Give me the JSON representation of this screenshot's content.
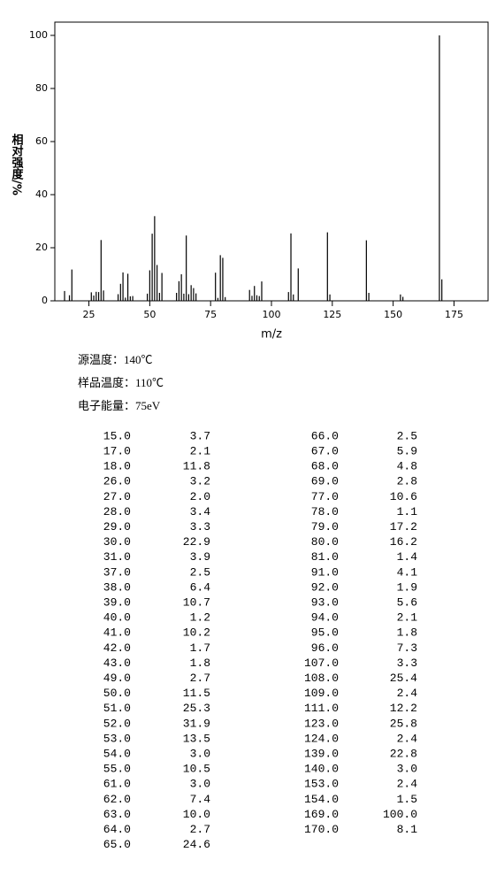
{
  "chart_data": {
    "type": "bar",
    "y_label": "相对强度/%",
    "x_label": "m/z",
    "x": [
      15,
      17,
      18,
      26,
      27,
      28,
      29,
      30,
      31,
      37,
      38,
      39,
      40,
      41,
      42,
      43,
      49,
      50,
      51,
      52,
      53,
      54,
      55,
      61,
      62,
      63,
      64,
      65,
      66,
      67,
      68,
      69,
      77,
      78,
      79,
      80,
      81,
      91,
      92,
      93,
      94,
      95,
      96,
      107,
      108,
      109,
      111,
      123,
      124,
      139,
      140,
      153,
      154,
      169,
      170
    ],
    "x_labels": [
      "15.0",
      "17.0",
      "18.0",
      "26.0",
      "27.0",
      "28.0",
      "29.0",
      "30.0",
      "31.0",
      "37.0",
      "38.0",
      "39.0",
      "40.0",
      "41.0",
      "42.0",
      "43.0",
      "49.0",
      "50.0",
      "51.0",
      "52.0",
      "53.0",
      "54.0",
      "55.0",
      "61.0",
      "62.0",
      "63.0",
      "64.0",
      "65.0",
      "66.0",
      "67.0",
      "68.0",
      "69.0",
      "77.0",
      "78.0",
      "79.0",
      "80.0",
      "81.0",
      "91.0",
      "92.0",
      "93.0",
      "94.0",
      "95.0",
      "96.0",
      "107.0",
      "108.0",
      "109.0",
      "111.0",
      "123.0",
      "124.0",
      "139.0",
      "140.0",
      "153.0",
      "154.0",
      "169.0",
      "170.0"
    ],
    "values": [
      3.7,
      2.1,
      11.8,
      3.2,
      2.0,
      3.4,
      3.3,
      22.9,
      3.9,
      2.5,
      6.4,
      10.7,
      1.2,
      10.2,
      1.7,
      1.8,
      2.7,
      11.5,
      25.3,
      31.9,
      13.5,
      3.0,
      10.5,
      3.0,
      7.4,
      10.0,
      2.7,
      24.6,
      2.5,
      5.9,
      4.8,
      2.8,
      10.6,
      1.1,
      17.2,
      16.2,
      1.4,
      4.1,
      1.9,
      5.6,
      2.1,
      1.8,
      7.3,
      3.3,
      25.4,
      2.4,
      12.2,
      25.8,
      2.4,
      22.8,
      3.0,
      2.4,
      1.5,
      100.0,
      8.1
    ],
    "value_labels": [
      "3.7",
      "2.1",
      "11.8",
      "3.2",
      "2.0",
      "3.4",
      "3.3",
      "22.9",
      "3.9",
      "2.5",
      "6.4",
      "10.7",
      "1.2",
      "10.2",
      "1.7",
      "1.8",
      "2.7",
      "11.5",
      "25.3",
      "31.9",
      "13.5",
      "3.0",
      "10.5",
      "3.0",
      "7.4",
      "10.0",
      "2.7",
      "24.6",
      "2.5",
      "5.9",
      "4.8",
      "2.8",
      "10.6",
      "1.1",
      "17.2",
      "16.2",
      "1.4",
      "4.1",
      "1.9",
      "5.6",
      "2.1",
      "1.8",
      "7.3",
      "3.3",
      "25.4",
      "2.4",
      "12.2",
      "25.8",
      "2.4",
      "22.8",
      "3.0",
      "2.4",
      "1.5",
      "100.0",
      "8.1"
    ],
    "color": "#000000",
    "xlim": [
      11,
      189
    ],
    "xticks": [
      25,
      50,
      75,
      100,
      125,
      150,
      175
    ],
    "ylim": [
      0,
      105
    ],
    "yticks": [
      0,
      20,
      40,
      60,
      80,
      100
    ]
  },
  "info": [
    "源温度：140℃",
    "样品温度：110℃",
    "电子能量：75eV"
  ]
}
